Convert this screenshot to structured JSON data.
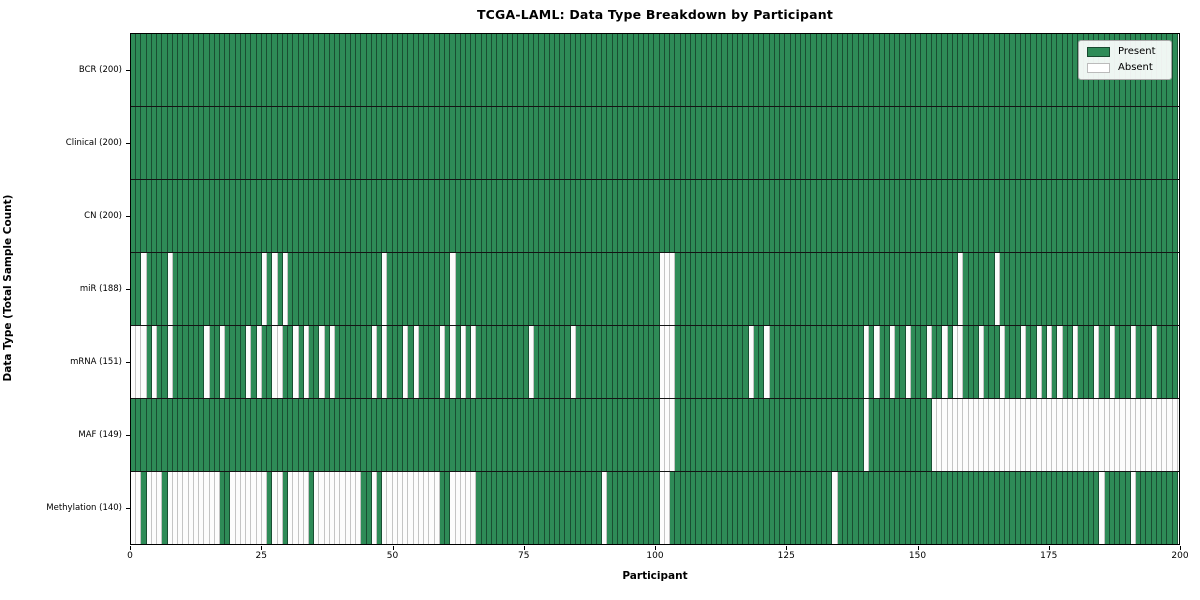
{
  "title": "TCGA-LAML: Data Type Breakdown by Participant",
  "xlabel": "Participant",
  "ylabel": "Data Type (Total Sample Count)",
  "legend": {
    "present_label": "Present",
    "absent_label": "Absent"
  },
  "colors": {
    "present": "#2e8b57",
    "absent": "#fcfcfc",
    "frame": "#000000"
  },
  "chart_data": {
    "type": "heatmap",
    "title": "TCGA-LAML: Data Type Breakdown by Participant",
    "xlabel": "Participant",
    "ylabel": "Data Type (Total Sample Count)",
    "legend_entries": [
      "Present",
      "Absent"
    ],
    "legend_position": "upper right",
    "n_participants": 200,
    "x_ticks": [
      0,
      25,
      50,
      75,
      100,
      125,
      150,
      175,
      200
    ],
    "x_range": [
      0,
      200
    ],
    "grid": false,
    "rows": [
      {
        "name": "BCR",
        "label": "BCR (200)",
        "present_count": 200,
        "absent_participants": []
      },
      {
        "name": "Clinical",
        "label": "Clinical (200)",
        "present_count": 200,
        "absent_participants": []
      },
      {
        "name": "CN",
        "label": "CN (200)",
        "present_count": 200,
        "absent_participants": []
      },
      {
        "name": "miR",
        "label": "miR (188)",
        "present_count": 188,
        "absent_participants": [
          2,
          7,
          25,
          27,
          29,
          48,
          61,
          101,
          102,
          103,
          158,
          165
        ]
      },
      {
        "name": "mRNA",
        "label": "mRNA (151)",
        "present_count": 151,
        "absent_participants": [
          0,
          1,
          2,
          4,
          7,
          14,
          17,
          22,
          24,
          27,
          28,
          31,
          33,
          36,
          38,
          46,
          48,
          52,
          54,
          59,
          61,
          63,
          65,
          76,
          84,
          101,
          102,
          103,
          118,
          121,
          140,
          142,
          145,
          148,
          152,
          155,
          157,
          158,
          162,
          166,
          170,
          173,
          175,
          177,
          180,
          184,
          187,
          191,
          195
        ]
      },
      {
        "name": "MAF",
        "label": "MAF (149)",
        "present_count": 149,
        "absent_participants": [
          101,
          102,
          103,
          140,
          153,
          154,
          155,
          156,
          157,
          158,
          159,
          160,
          161,
          162,
          163,
          164,
          165,
          166,
          167,
          168,
          169,
          170,
          171,
          172,
          173,
          174,
          175,
          176,
          177,
          178,
          179,
          180,
          181,
          182,
          183,
          184,
          185,
          186,
          187,
          188,
          189,
          190,
          191,
          192,
          193,
          194,
          195,
          196,
          197,
          198,
          199
        ]
      },
      {
        "name": "Methylation",
        "label": "Methylation (140)",
        "present_count": 140,
        "absent_participants": [
          0,
          1,
          3,
          4,
          5,
          7,
          8,
          9,
          10,
          11,
          12,
          13,
          14,
          15,
          16,
          19,
          20,
          21,
          22,
          23,
          24,
          25,
          27,
          28,
          30,
          31,
          32,
          33,
          35,
          36,
          37,
          38,
          39,
          40,
          41,
          42,
          43,
          46,
          48,
          49,
          50,
          51,
          52,
          53,
          54,
          55,
          56,
          57,
          58,
          61,
          62,
          63,
          64,
          65,
          90,
          101,
          102,
          134,
          185,
          191
        ]
      }
    ]
  }
}
